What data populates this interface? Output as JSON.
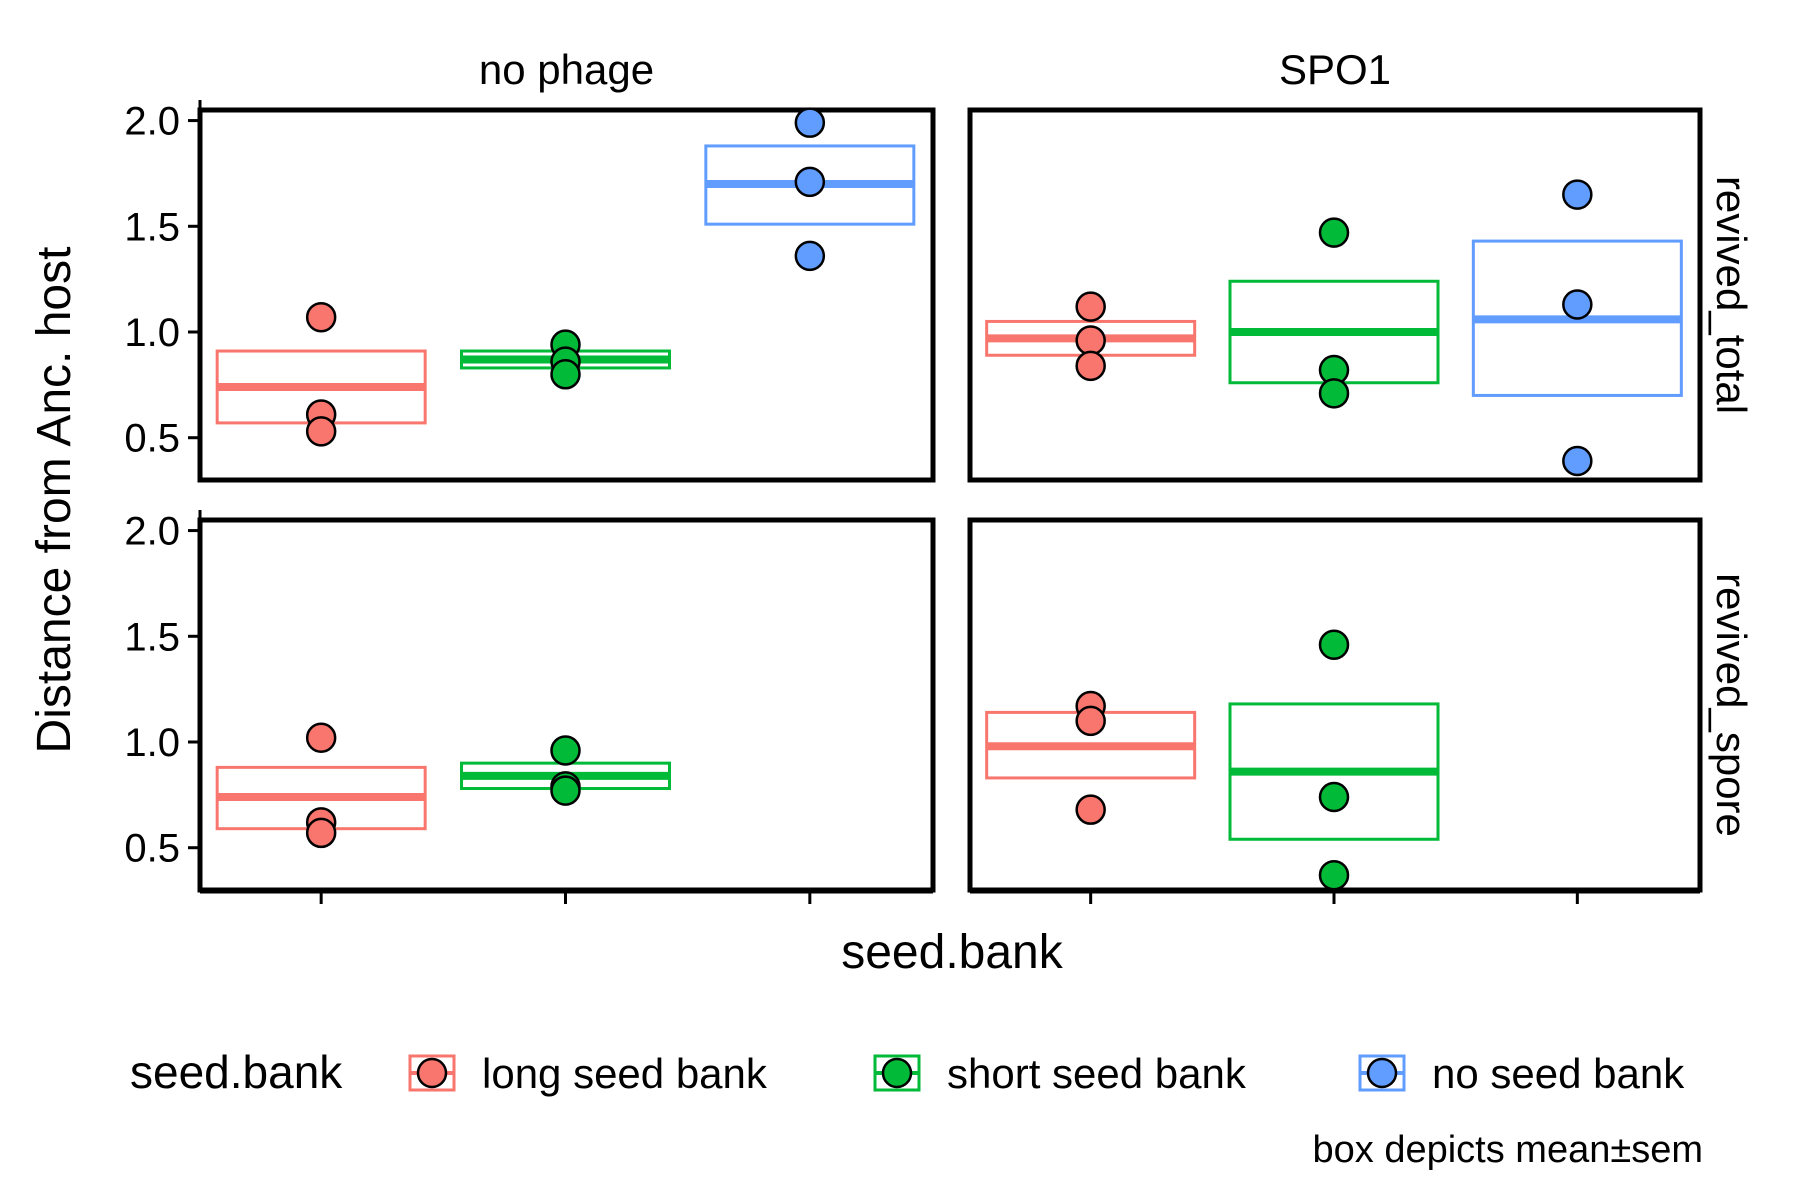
{
  "chart_data": {
    "type": "crossbar+points (faceted)",
    "ylabel": "Distance from Anc. host",
    "xlabel": "seed.bank",
    "ylim": [
      0.3,
      2.05
    ],
    "y_ticks": [
      0.5,
      1.0,
      1.5,
      2.0
    ],
    "y_tick_labels": [
      "0.5",
      "1.0",
      "1.5",
      "2.0"
    ],
    "categories": [
      "long seed bank",
      "short seed bank",
      "no seed bank"
    ],
    "columns": [
      "no phage",
      "SPO1"
    ],
    "rows": [
      "revived_total",
      "revived_spore"
    ],
    "colors": {
      "long seed bank": "#F8766D",
      "short seed bank": "#00BA38",
      "no seed bank": "#619CFF"
    },
    "legend": {
      "title": "seed.bank",
      "entries": [
        "long seed bank",
        "short seed bank",
        "no seed bank"
      ],
      "position": "bottom"
    },
    "caption": "box depicts mean±sem",
    "panels": [
      {
        "column": "no phage",
        "row": "revived_total",
        "groups": [
          {
            "category": "long seed bank",
            "mean": 0.74,
            "lower": 0.57,
            "upper": 0.91,
            "points": [
              1.07,
              0.61,
              0.53
            ]
          },
          {
            "category": "short seed bank",
            "mean": 0.87,
            "lower": 0.83,
            "upper": 0.91,
            "points": [
              0.94,
              0.86,
              0.8
            ]
          },
          {
            "category": "no seed bank",
            "mean": 1.7,
            "lower": 1.51,
            "upper": 1.88,
            "points": [
              1.99,
              1.71,
              1.36
            ]
          }
        ]
      },
      {
        "column": "SPO1",
        "row": "revived_total",
        "groups": [
          {
            "category": "long seed bank",
            "mean": 0.97,
            "lower": 0.89,
            "upper": 1.05,
            "points": [
              1.12,
              0.96,
              0.84
            ]
          },
          {
            "category": "short seed bank",
            "mean": 1.0,
            "lower": 0.76,
            "upper": 1.24,
            "points": [
              1.47,
              0.82,
              0.71
            ]
          },
          {
            "category": "no seed bank",
            "mean": 1.06,
            "lower": 0.7,
            "upper": 1.43,
            "points": [
              1.65,
              1.13,
              0.39
            ]
          }
        ]
      },
      {
        "column": "no phage",
        "row": "revived_spore",
        "groups": [
          {
            "category": "long seed bank",
            "mean": 0.74,
            "lower": 0.59,
            "upper": 0.88,
            "points": [
              1.02,
              0.62,
              0.57
            ]
          },
          {
            "category": "short seed bank",
            "mean": 0.84,
            "lower": 0.78,
            "upper": 0.9,
            "points": [
              0.96,
              0.79,
              0.77
            ]
          }
        ]
      },
      {
        "column": "SPO1",
        "row": "revived_spore",
        "groups": [
          {
            "category": "long seed bank",
            "mean": 0.98,
            "lower": 0.83,
            "upper": 1.14,
            "points": [
              1.17,
              1.1,
              0.68
            ]
          },
          {
            "category": "short seed bank",
            "mean": 0.86,
            "lower": 0.54,
            "upper": 1.18,
            "points": [
              1.46,
              0.74,
              0.37
            ]
          }
        ]
      }
    ]
  }
}
